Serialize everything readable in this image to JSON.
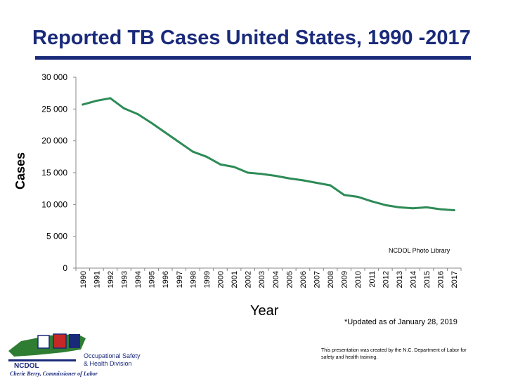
{
  "slide": {
    "title": "Reported TB Cases United States, 1990 -2017",
    "photo_credit": "NCDOL Photo Library",
    "footnote": "*Updated as of January 28, 2019",
    "disclaimer": "This presentation was created by the N.C. Department of Labor for safety and health training.",
    "logo": {
      "ncdol": "NCDOL",
      "osh_line1": "Occupational Safety",
      "osh_line2": "& Health Division",
      "commissioner": "Cherie Berry, Commissioner of Labor"
    }
  },
  "chart_data": {
    "type": "line",
    "title": "Reported TB Cases United States, 1990 -2017",
    "xlabel": "Year",
    "ylabel": "Cases",
    "ylim": [
      0,
      30000
    ],
    "y_ticks": [
      0,
      5000,
      10000,
      15000,
      20000,
      25000,
      30000
    ],
    "y_tick_labels": [
      "0",
      "5 000",
      "10 000",
      "15 000",
      "20 000",
      "25 000",
      "30 000"
    ],
    "x": [
      "1990",
      "1991",
      "1992",
      "1993",
      "1994",
      "1995",
      "1996",
      "1997",
      "1998",
      "1999",
      "2000",
      "2001",
      "2002",
      "2003",
      "2004",
      "2005",
      "2006",
      "2007",
      "2008",
      "2009",
      "2010",
      "2011",
      "2012",
      "2013",
      "2014",
      "2015",
      "2016",
      "2017"
    ],
    "series": [
      {
        "color": "#2e8b57",
        "values": [
          25700,
          26300,
          26700,
          25100,
          24200,
          22800,
          21300,
          19800,
          18300,
          17500,
          16300,
          15900,
          15000,
          14800,
          14500,
          14100,
          13800,
          13400,
          13000,
          11500,
          11200,
          10500,
          9900,
          9550,
          9400,
          9550,
          9250,
          9100
        ]
      }
    ],
    "grid": false,
    "legend": "none"
  }
}
